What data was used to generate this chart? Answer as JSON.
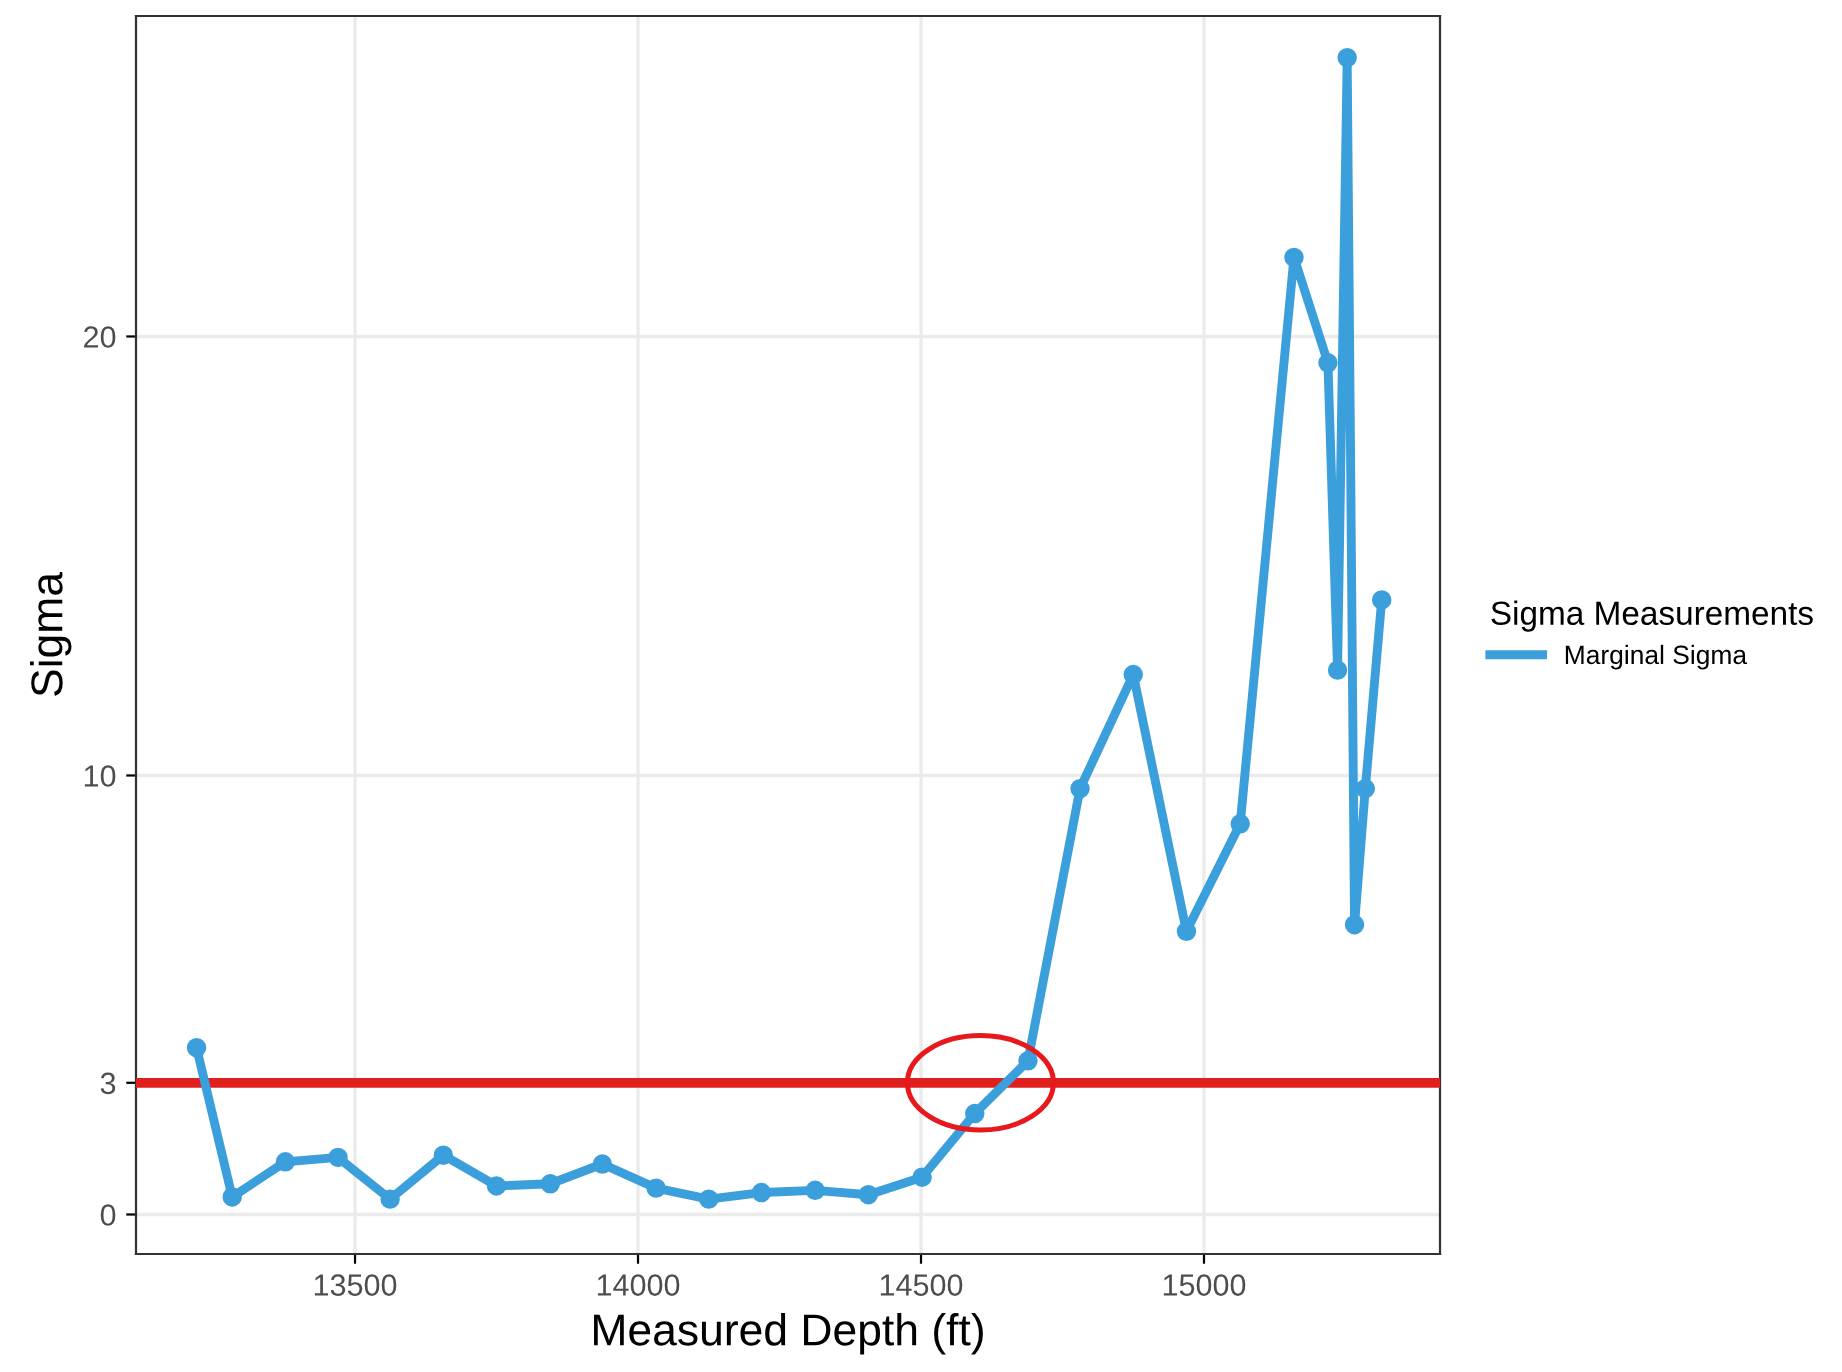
{
  "chart_data": {
    "type": "line",
    "xlabel": "Measured Depth (ft)",
    "ylabel": "Sigma",
    "legend_title": "Sigma Measurements",
    "legend": "right",
    "grid": true,
    "marker": "circle",
    "line_style": "solid",
    "xlim": [
      13113,
      15417
    ],
    "xticks": [
      13500,
      14000,
      14500,
      15000
    ],
    "ylim": [
      -0.9,
      27.3
    ],
    "yticks": [
      0,
      3,
      10,
      20
    ],
    "series": [
      {
        "name": "Marginal Sigma",
        "color": "#3b9fdc",
        "x": [
          13220,
          13283,
          13377,
          13470,
          13562,
          13656,
          13750,
          13845,
          13937,
          14032,
          14125,
          14218,
          14313,
          14407,
          14502,
          14595,
          14689,
          14781,
          14875,
          14969,
          15064,
          15159,
          15219,
          15236,
          15253,
          15266,
          15285,
          15314
        ],
        "values": [
          3.8,
          0.4,
          1.2,
          1.3,
          0.35,
          1.35,
          0.65,
          0.7,
          1.15,
          0.6,
          0.35,
          0.5,
          0.55,
          0.45,
          0.85,
          2.3,
          3.5,
          9.7,
          12.3,
          6.45,
          8.9,
          21.8,
          19.4,
          12.4,
          26.35,
          6.6,
          9.7,
          14.0
        ]
      }
    ],
    "ref_lines": [
      {
        "axis": "y",
        "value": 3,
        "color": "#e0201f",
        "line_style": "solid"
      }
    ]
  }
}
